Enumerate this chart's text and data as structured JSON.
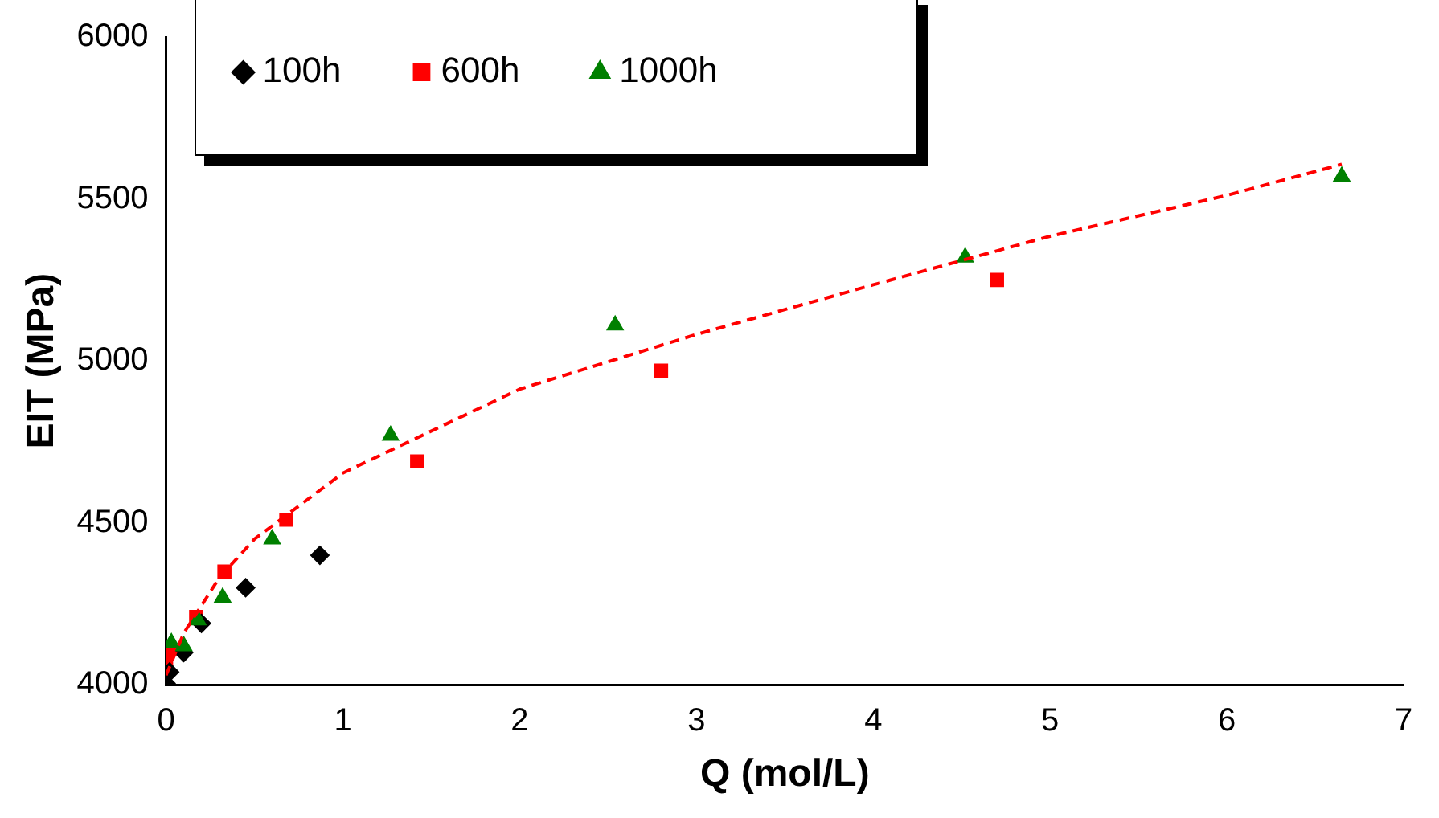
{
  "chart_data": {
    "type": "scatter",
    "xlabel": "Q (mol/L)",
    "ylabel": "EIT (MPa)",
    "xlim": [
      0,
      7
    ],
    "ylim": [
      4000,
      6000
    ],
    "xticks": [
      0,
      1,
      2,
      3,
      4,
      5,
      6,
      7
    ],
    "yticks": [
      4000,
      4500,
      5000,
      5500,
      6000
    ],
    "grid": false,
    "legend": "top left",
    "series": [
      {
        "name": "100h",
        "color": "#000000",
        "marker": "diamond",
        "x": [
          0,
          0.02,
          0.1,
          0.2,
          0.45,
          0.87
        ],
        "values": [
          4005,
          4040,
          4100,
          4190,
          4300,
          4400
        ]
      },
      {
        "name": "600h",
        "color": "#ff0000",
        "marker": "square",
        "x": [
          0,
          0.02,
          0.17,
          0.33,
          0.68,
          1.42,
          2.8,
          4.7
        ],
        "values": [
          4070,
          4110,
          4210,
          4350,
          4510,
          4690,
          4970,
          5250
        ]
      },
      {
        "name": "1000h",
        "color": "#008000",
        "marker": "triangle",
        "x": [
          0.03,
          0.1,
          0.18,
          0.32,
          0.6,
          1.27,
          2.54,
          4.52,
          6.65
        ],
        "values": [
          4130,
          4120,
          4200,
          4270,
          4450,
          4770,
          5110,
          5320,
          5570
        ]
      },
      {
        "type": "line",
        "color": "#ff0000",
        "line_style": "dashed",
        "marker": "none",
        "x": [
          0,
          0.1,
          0.3,
          0.5,
          1,
          2,
          3,
          4,
          5,
          6,
          6.65
        ],
        "values": [
          4030,
          4160,
          4330,
          4450,
          4654,
          4913,
          5082,
          5235,
          5385,
          5511,
          5607
        ]
      }
    ]
  }
}
